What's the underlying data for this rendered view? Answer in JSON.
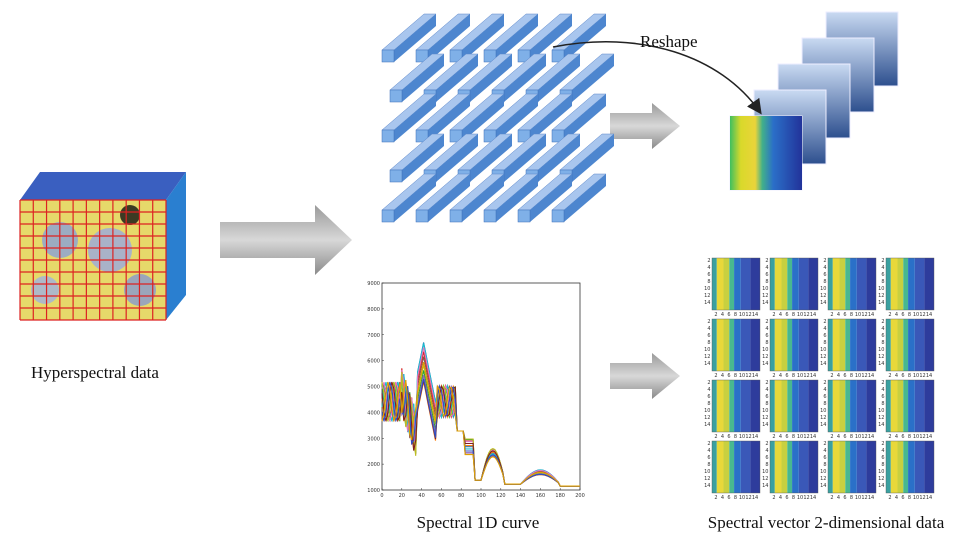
{
  "labels": {
    "reshape": "Reshape",
    "hyperspectral": "Hyperspectral data",
    "curve": "Spectral 1D curve",
    "vector": "Spectral vector 2-dimensional data"
  },
  "curve_chart": {
    "yticks": [
      1000,
      2000,
      3000,
      4000,
      5000,
      6000,
      7000,
      8000,
      9000
    ],
    "xticks": [
      0,
      20,
      40,
      60,
      80,
      100,
      120,
      140,
      160,
      180,
      200
    ]
  },
  "image_ticks": [
    2,
    4,
    6,
    8,
    10,
    12,
    14
  ]
}
